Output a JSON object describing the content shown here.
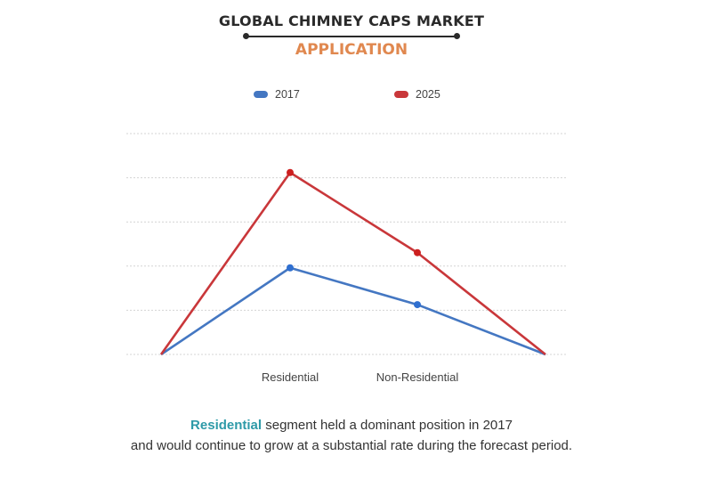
{
  "header": {
    "title": "GLOBAL CHIMNEY CAPS MARKET",
    "subtitle": "APPLICATION"
  },
  "colors": {
    "title": "#2a2a2a",
    "subtitle": "#e0884f",
    "highlight": "#2e9aa8",
    "series_2017": "#4477c2",
    "series_2025": "#c9373a",
    "gridline": "#d4d4d4"
  },
  "chart_data": {
    "type": "line",
    "categories": [
      "",
      "Residential",
      "Non-Residential",
      ""
    ],
    "series": [
      {
        "name": "2017",
        "color": "#4477c2",
        "values": [
          0,
          2.0,
          1.15,
          0
        ]
      },
      {
        "name": "2025",
        "color": "#c9373a",
        "values": [
          0,
          4.2,
          2.35,
          0
        ]
      }
    ],
    "ylim": [
      0,
      5.1
    ],
    "grid": true,
    "legend": "top-center",
    "markers_on_categories": [
      "Residential",
      "Non-Residential"
    ]
  },
  "caption": {
    "highlight": "Residential",
    "line1_rest": " segment held a dominant position in 2017",
    "line2": "and would continue to grow at a substantial rate during the forecast period."
  }
}
